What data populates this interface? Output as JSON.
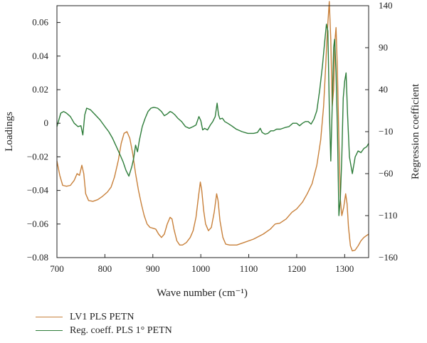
{
  "chart_data": {
    "type": "line",
    "xlabel": "Wave number (cm⁻¹)",
    "ylabel_left": "Loadings",
    "ylabel_right": "Regression coefficient",
    "xlim": [
      700,
      1350
    ],
    "ylim_left": [
      -0.08,
      0.07
    ],
    "ylim_right": [
      -160,
      140
    ],
    "x_ticks": [
      700,
      800,
      900,
      1000,
      1100,
      1200,
      1300
    ],
    "y_ticks_left": [
      0.06,
      0.04,
      0.02,
      0,
      -0.02,
      -0.04,
      -0.06,
      -0.08
    ],
    "y_ticks_left_labels": [
      "0.06",
      "0.04",
      "0.02",
      "0",
      "−0.02",
      "−0.04",
      "−0.06",
      "−0.08"
    ],
    "y_ticks_right": [
      140,
      90,
      40,
      -10,
      -60,
      -110,
      -160
    ],
    "y_ticks_right_labels": [
      "140",
      "90",
      "40",
      "−10",
      "−60",
      "−110",
      "−160"
    ],
    "legend_position": "bottom-left",
    "grid": false,
    "series": [
      {
        "name": "LV1 PLS PETN",
        "axis": "left",
        "color": "#c8803a",
        "points": [
          [
            700,
            -0.0225
          ],
          [
            706,
            -0.031
          ],
          [
            712,
            -0.037
          ],
          [
            720,
            -0.0375
          ],
          [
            728,
            -0.037
          ],
          [
            736,
            -0.034
          ],
          [
            742,
            -0.03
          ],
          [
            747,
            -0.031
          ],
          [
            752,
            -0.025
          ],
          [
            756,
            -0.03
          ],
          [
            760,
            -0.042
          ],
          [
            766,
            -0.046
          ],
          [
            775,
            -0.0465
          ],
          [
            785,
            -0.0455
          ],
          [
            795,
            -0.0435
          ],
          [
            805,
            -0.041
          ],
          [
            813,
            -0.038
          ],
          [
            820,
            -0.032
          ],
          [
            828,
            -0.022
          ],
          [
            834,
            -0.012
          ],
          [
            840,
            -0.006
          ],
          [
            846,
            -0.005
          ],
          [
            852,
            -0.009
          ],
          [
            858,
            -0.018
          ],
          [
            864,
            -0.03
          ],
          [
            870,
            -0.04
          ],
          [
            876,
            -0.048
          ],
          [
            882,
            -0.055
          ],
          [
            888,
            -0.06
          ],
          [
            894,
            -0.062
          ],
          [
            900,
            -0.0625
          ],
          [
            906,
            -0.063
          ],
          [
            912,
            -0.066
          ],
          [
            918,
            -0.068
          ],
          [
            924,
            -0.066
          ],
          [
            930,
            -0.06
          ],
          [
            936,
            -0.056
          ],
          [
            940,
            -0.057
          ],
          [
            944,
            -0.063
          ],
          [
            950,
            -0.07
          ],
          [
            956,
            -0.0725
          ],
          [
            962,
            -0.0725
          ],
          [
            970,
            -0.071
          ],
          [
            978,
            -0.068
          ],
          [
            984,
            -0.064
          ],
          [
            990,
            -0.056
          ],
          [
            995,
            -0.044
          ],
          [
            999,
            -0.035
          ],
          [
            1002,
            -0.04
          ],
          [
            1006,
            -0.052
          ],
          [
            1010,
            -0.06
          ],
          [
            1016,
            -0.064
          ],
          [
            1022,
            -0.062
          ],
          [
            1028,
            -0.053
          ],
          [
            1033,
            -0.042
          ],
          [
            1036,
            -0.046
          ],
          [
            1040,
            -0.058
          ],
          [
            1046,
            -0.068
          ],
          [
            1052,
            -0.072
          ],
          [
            1060,
            -0.0725
          ],
          [
            1075,
            -0.0725
          ],
          [
            1090,
            -0.071
          ],
          [
            1110,
            -0.069
          ],
          [
            1130,
            -0.066
          ],
          [
            1145,
            -0.063
          ],
          [
            1155,
            -0.06
          ],
          [
            1165,
            -0.0595
          ],
          [
            1178,
            -0.057
          ],
          [
            1190,
            -0.053
          ],
          [
            1200,
            -0.051
          ],
          [
            1212,
            -0.047
          ],
          [
            1222,
            -0.042
          ],
          [
            1232,
            -0.036
          ],
          [
            1242,
            -0.025
          ],
          [
            1250,
            -0.01
          ],
          [
            1256,
            0.01
          ],
          [
            1260,
            0.032
          ],
          [
            1264,
            0.055
          ],
          [
            1268,
            0.0725
          ],
          [
            1271,
            0.05
          ],
          [
            1274,
            0.01
          ],
          [
            1277,
            0.02
          ],
          [
            1280,
            0.05
          ],
          [
            1282,
            0.057
          ],
          [
            1285,
            0.03
          ],
          [
            1288,
            -0.01
          ],
          [
            1291,
            -0.045
          ],
          [
            1294,
            -0.055
          ],
          [
            1298,
            -0.05
          ],
          [
            1302,
            -0.042
          ],
          [
            1305,
            -0.048
          ],
          [
            1308,
            -0.062
          ],
          [
            1312,
            -0.073
          ],
          [
            1316,
            -0.076
          ],
          [
            1322,
            -0.0755
          ],
          [
            1328,
            -0.073
          ],
          [
            1334,
            -0.07
          ],
          [
            1340,
            -0.068
          ],
          [
            1345,
            -0.067
          ],
          [
            1350,
            -0.066
          ]
        ]
      },
      {
        "name": "Reg. coeff. PLS 1° PETN",
        "axis": "right",
        "color": "#2e7d3a",
        "points": [
          [
            700,
            -4
          ],
          [
            704,
            4
          ],
          [
            708,
            12
          ],
          [
            714,
            14
          ],
          [
            720,
            12
          ],
          [
            728,
            8
          ],
          [
            736,
            0
          ],
          [
            744,
            -4
          ],
          [
            750,
            -3
          ],
          [
            754,
            -14
          ],
          [
            758,
            10
          ],
          [
            762,
            18
          ],
          [
            770,
            16
          ],
          [
            780,
            10
          ],
          [
            790,
            4
          ],
          [
            800,
            -4
          ],
          [
            808,
            -10
          ],
          [
            816,
            -18
          ],
          [
            824,
            -28
          ],
          [
            832,
            -38
          ],
          [
            838,
            -46
          ],
          [
            844,
            -56
          ],
          [
            850,
            -63
          ],
          [
            856,
            -52
          ],
          [
            860,
            -42
          ],
          [
            864,
            -26
          ],
          [
            868,
            -34
          ],
          [
            872,
            -20
          ],
          [
            878,
            -4
          ],
          [
            884,
            6
          ],
          [
            890,
            14
          ],
          [
            896,
            18
          ],
          [
            902,
            19
          ],
          [
            910,
            18
          ],
          [
            918,
            14
          ],
          [
            924,
            9
          ],
          [
            930,
            11
          ],
          [
            936,
            14
          ],
          [
            940,
            13
          ],
          [
            946,
            10
          ],
          [
            952,
            6
          ],
          [
            960,
            2
          ],
          [
            968,
            -4
          ],
          [
            976,
            -6
          ],
          [
            984,
            -4
          ],
          [
            990,
            -2
          ],
          [
            996,
            8
          ],
          [
            1000,
            3
          ],
          [
            1004,
            -8
          ],
          [
            1008,
            -6
          ],
          [
            1014,
            -8
          ],
          [
            1020,
            -2
          ],
          [
            1025,
            2
          ],
          [
            1030,
            8
          ],
          [
            1034,
            24
          ],
          [
            1037,
            10
          ],
          [
            1040,
            5
          ],
          [
            1045,
            6
          ],
          [
            1050,
            2
          ],
          [
            1056,
            0
          ],
          [
            1064,
            -3
          ],
          [
            1074,
            -7
          ],
          [
            1086,
            -10
          ],
          [
            1098,
            -12
          ],
          [
            1110,
            -12
          ],
          [
            1118,
            -11
          ],
          [
            1124,
            -6
          ],
          [
            1128,
            -11
          ],
          [
            1134,
            -13
          ],
          [
            1140,
            -12
          ],
          [
            1146,
            -9
          ],
          [
            1152,
            -9
          ],
          [
            1158,
            -7
          ],
          [
            1166,
            -7
          ],
          [
            1176,
            -5
          ],
          [
            1184,
            -4
          ],
          [
            1192,
            0
          ],
          [
            1200,
            0
          ],
          [
            1206,
            -3
          ],
          [
            1212,
            0
          ],
          [
            1218,
            2
          ],
          [
            1224,
            2
          ],
          [
            1230,
            -1
          ],
          [
            1236,
            5
          ],
          [
            1242,
            15
          ],
          [
            1248,
            40
          ],
          [
            1254,
            70
          ],
          [
            1258,
            95
          ],
          [
            1262,
            118
          ],
          [
            1265,
            110
          ],
          [
            1268,
            20
          ],
          [
            1271,
            -45
          ],
          [
            1274,
            20
          ],
          [
            1277,
            90
          ],
          [
            1279,
            100
          ],
          [
            1282,
            60
          ],
          [
            1285,
            -10
          ],
          [
            1288,
            -110
          ],
          [
            1291,
            -90
          ],
          [
            1294,
            -40
          ],
          [
            1297,
            30
          ],
          [
            1300,
            50
          ],
          [
            1303,
            60
          ],
          [
            1306,
            10
          ],
          [
            1310,
            -40
          ],
          [
            1316,
            -60
          ],
          [
            1322,
            -40
          ],
          [
            1328,
            -33
          ],
          [
            1334,
            -35
          ],
          [
            1340,
            -30
          ],
          [
            1346,
            -28
          ],
          [
            1350,
            -24
          ]
        ]
      }
    ]
  }
}
